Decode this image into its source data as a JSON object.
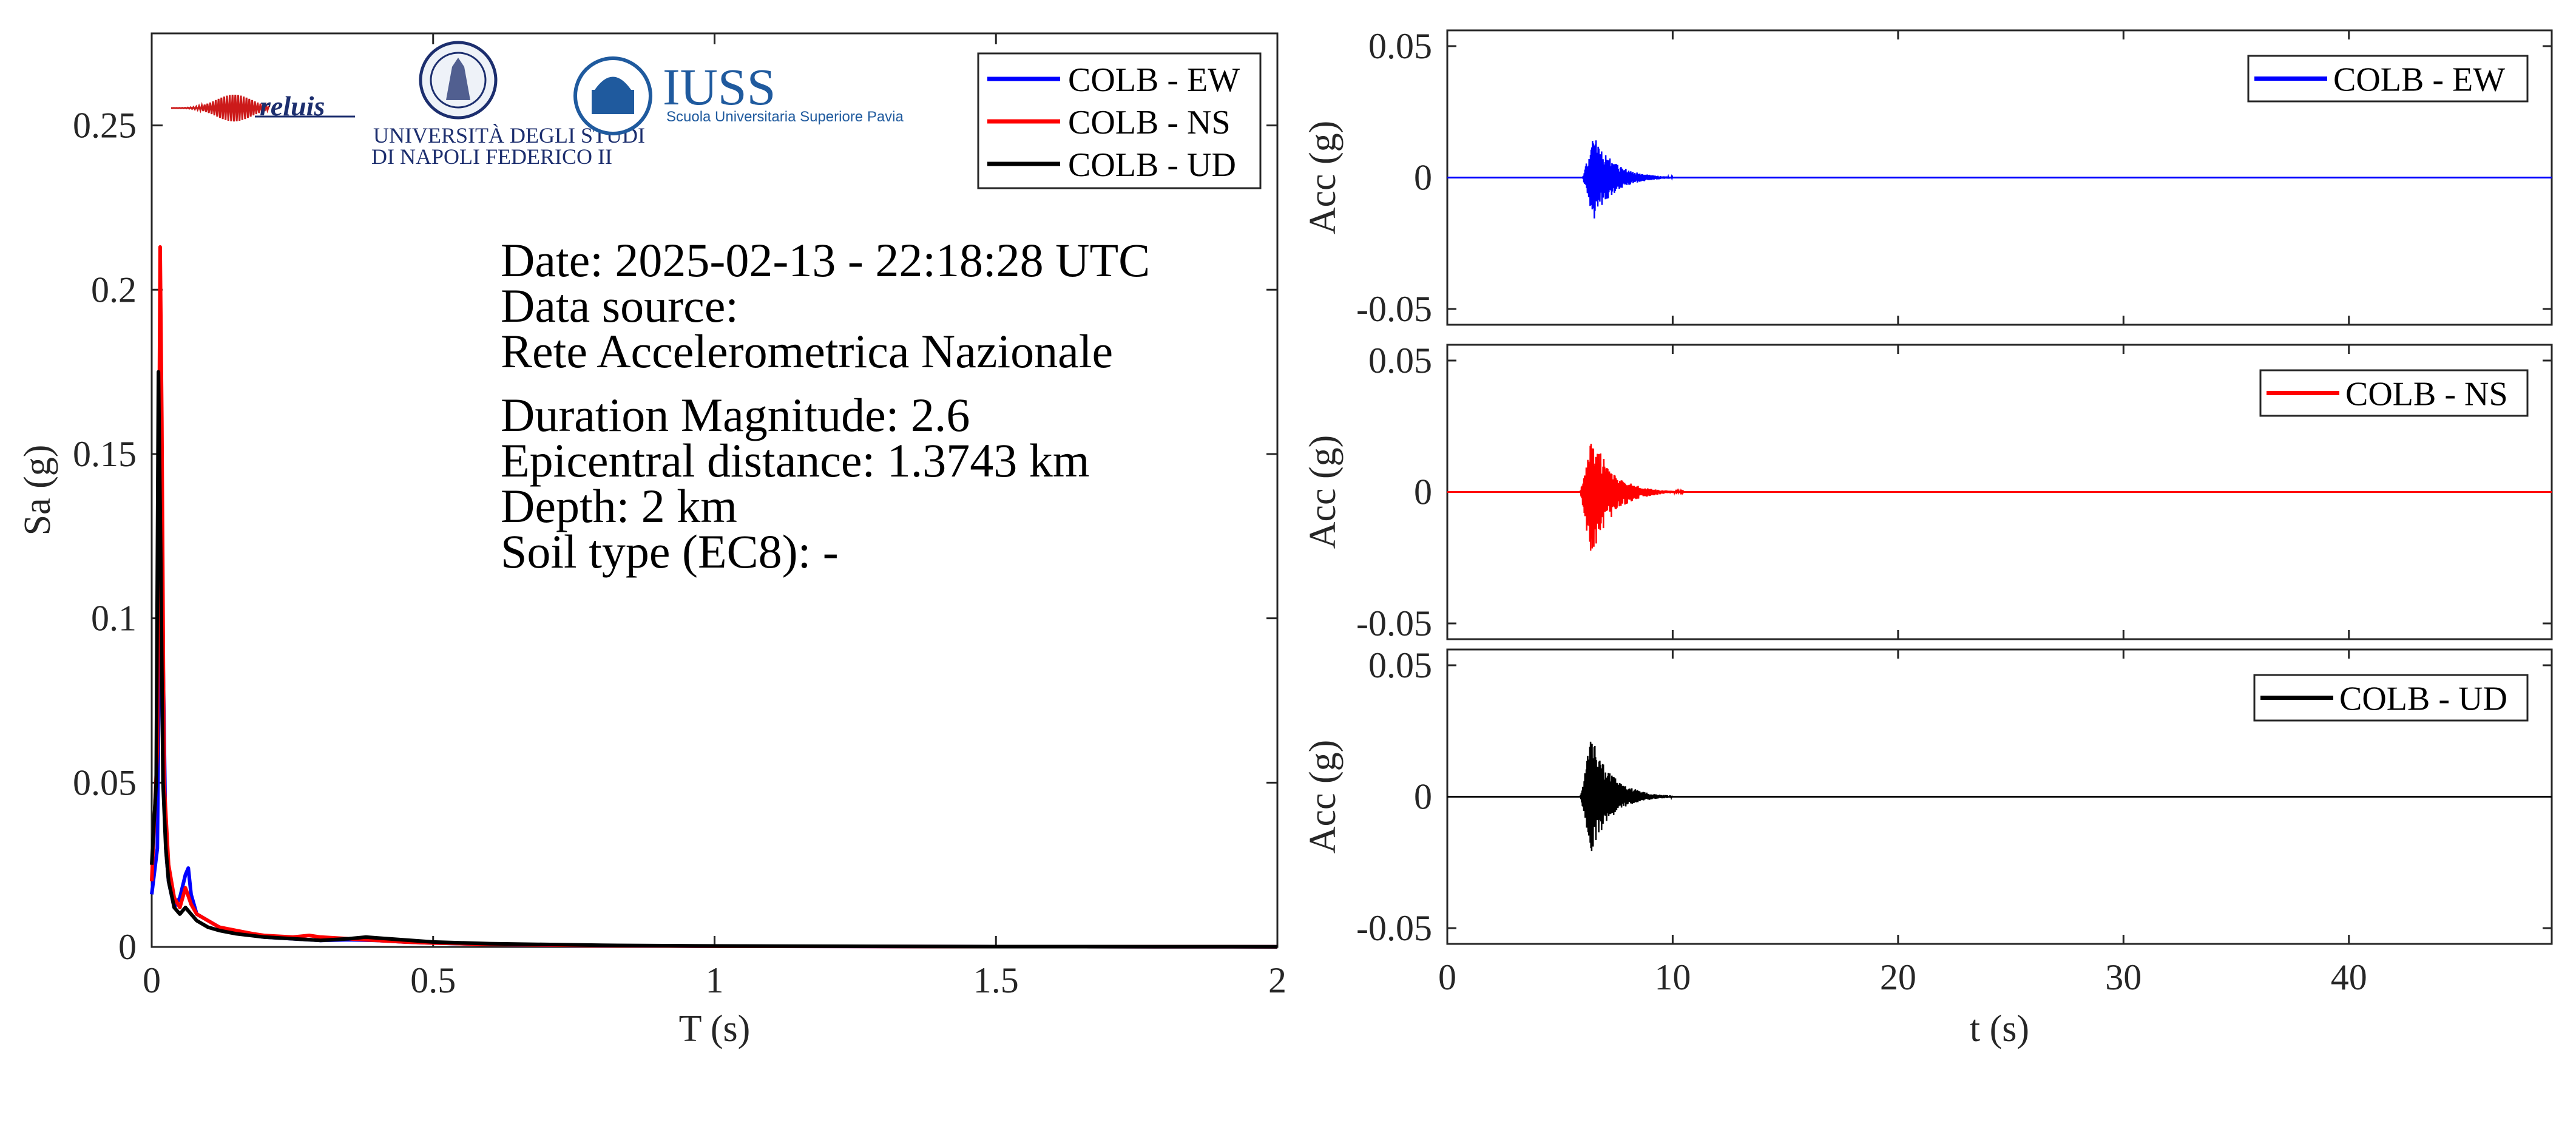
{
  "info_text": {
    "date": "Date: 2025-02-13 - 22:18:28 UTC",
    "data_source": "Data source:",
    "network": "Rete Accelerometrica Nazionale",
    "magnitude": "Duration Magnitude: 2.6",
    "distance": "Epicentral distance: 1.3743 km",
    "depth": "Depth: 2 km",
    "soil": "Soil type (EC8): -"
  },
  "logos": {
    "reluis": "reluis",
    "unina_line1": "UNIVERSITÀ DEGLI STUDI",
    "unina_line2": "DI NAPOLI FEDERICO II",
    "iuss": "IUSS",
    "iuss_sub": "Scuola Universitaria Superiore Pavia"
  },
  "colors": {
    "EW": "#0000ff",
    "NS": "#ff0000",
    "UD": "#000000",
    "axes": "#262626"
  },
  "chart_data": [
    {
      "type": "line",
      "xlabel": "T (s)",
      "ylabel": "Sa (g)",
      "xlim": [
        0,
        2
      ],
      "ylim": [
        0,
        0.278
      ],
      "xticks": [
        0,
        0.5,
        1,
        1.5,
        2
      ],
      "xtick_labels": [
        "0",
        "0.5",
        "1",
        "1.5",
        "2"
      ],
      "yticks": [
        0,
        0.05,
        0.1,
        0.15,
        0.2,
        0.25
      ],
      "ytick_labels": [
        "0",
        "0.05",
        "0.1",
        "0.15",
        "0.2",
        "0.25"
      ],
      "legend_position": "top-right",
      "grid": false,
      "series": [
        {
          "name": "COLB - EW",
          "color": "#0000ff",
          "x": [
            0,
            0.01,
            0.015,
            0.02,
            0.025,
            0.03,
            0.04,
            0.05,
            0.06,
            0.065,
            0.07,
            0.08,
            0.1,
            0.12,
            0.15,
            0.18,
            0.2,
            0.25,
            0.3,
            0.35,
            0.4,
            0.45,
            0.5,
            0.6,
            0.8,
            1.0,
            1.5,
            2.0
          ],
          "y": [
            0.016,
            0.03,
            0.12,
            0.09,
            0.03,
            0.02,
            0.012,
            0.015,
            0.022,
            0.024,
            0.016,
            0.01,
            0.008,
            0.006,
            0.0045,
            0.0035,
            0.003,
            0.0025,
            0.002,
            0.0022,
            0.002,
            0.0015,
            0.0012,
            0.0008,
            0.0004,
            0.0002,
            0.0001,
            5e-05
          ]
        },
        {
          "name": "COLB - NS",
          "color": "#ff0000",
          "x": [
            0,
            0.01,
            0.015,
            0.018,
            0.022,
            0.03,
            0.04,
            0.05,
            0.06,
            0.07,
            0.08,
            0.1,
            0.12,
            0.15,
            0.18,
            0.2,
            0.25,
            0.28,
            0.3,
            0.35,
            0.4,
            0.45,
            0.5,
            0.6,
            0.8,
            1.0,
            1.5,
            2.0
          ],
          "y": [
            0.02,
            0.06,
            0.213,
            0.16,
            0.05,
            0.025,
            0.015,
            0.012,
            0.018,
            0.013,
            0.01,
            0.008,
            0.006,
            0.005,
            0.004,
            0.0035,
            0.003,
            0.0035,
            0.003,
            0.0025,
            0.002,
            0.0015,
            0.0012,
            0.0008,
            0.0004,
            0.0002,
            0.0001,
            5e-05
          ]
        },
        {
          "name": "COLB - UD",
          "color": "#000000",
          "x": [
            0,
            0.008,
            0.012,
            0.016,
            0.02,
            0.025,
            0.03,
            0.04,
            0.05,
            0.06,
            0.07,
            0.08,
            0.1,
            0.12,
            0.15,
            0.2,
            0.25,
            0.3,
            0.35,
            0.38,
            0.42,
            0.5,
            0.6,
            0.8,
            1.0,
            1.5,
            2.0
          ],
          "y": [
            0.025,
            0.05,
            0.175,
            0.12,
            0.05,
            0.03,
            0.02,
            0.012,
            0.01,
            0.012,
            0.01,
            0.008,
            0.006,
            0.005,
            0.004,
            0.003,
            0.0025,
            0.002,
            0.0025,
            0.003,
            0.0025,
            0.0015,
            0.001,
            0.0005,
            0.0003,
            0.0001,
            5e-05
          ]
        }
      ]
    },
    {
      "type": "line",
      "xlabel": "",
      "ylabel": "Acc (g)",
      "xlim": [
        0,
        49
      ],
      "ylim": [
        -0.056,
        0.056
      ],
      "xticks": [
        0,
        10,
        20,
        30,
        40
      ],
      "yticks": [
        -0.05,
        0,
        0.05
      ],
      "ytick_labels": [
        "-0.05",
        "0",
        "0.05"
      ],
      "legend_position": "top-right",
      "grid": false,
      "series": [
        {
          "name": "COLB - EW",
          "color": "#0000ff",
          "onset_s": 6.0,
          "peak_positive_g": 0.016,
          "peak_negative_g": -0.016,
          "decay_end_s": 10.0
        }
      ]
    },
    {
      "type": "line",
      "xlabel": "",
      "ylabel": "Acc (g)",
      "xlim": [
        0,
        49
      ],
      "ylim": [
        -0.056,
        0.056
      ],
      "xticks": [
        0,
        10,
        20,
        30,
        40
      ],
      "yticks": [
        -0.05,
        0,
        0.05
      ],
      "ytick_labels": [
        "-0.05",
        "0",
        "0.05"
      ],
      "legend_position": "top-right",
      "grid": false,
      "series": [
        {
          "name": "COLB - NS",
          "color": "#ff0000",
          "onset_s": 5.9,
          "peak_positive_g": 0.023,
          "peak_negative_g": -0.026,
          "decay_end_s": 10.5
        }
      ]
    },
    {
      "type": "line",
      "xlabel": "t (s)",
      "ylabel": "Acc (g)",
      "xlim": [
        0,
        49
      ],
      "ylim": [
        -0.056,
        0.056
      ],
      "xticks": [
        0,
        10,
        20,
        30,
        40
      ],
      "xtick_labels": [
        "0",
        "10",
        "20",
        "30",
        "40"
      ],
      "yticks": [
        -0.05,
        0,
        0.05
      ],
      "ytick_labels": [
        "-0.05",
        "0",
        "0.05"
      ],
      "legend_position": "top-right",
      "grid": false,
      "series": [
        {
          "name": "COLB - UD",
          "color": "#000000",
          "onset_s": 5.9,
          "peak_positive_g": 0.024,
          "peak_negative_g": -0.021,
          "decay_end_s": 10.0
        }
      ]
    }
  ]
}
